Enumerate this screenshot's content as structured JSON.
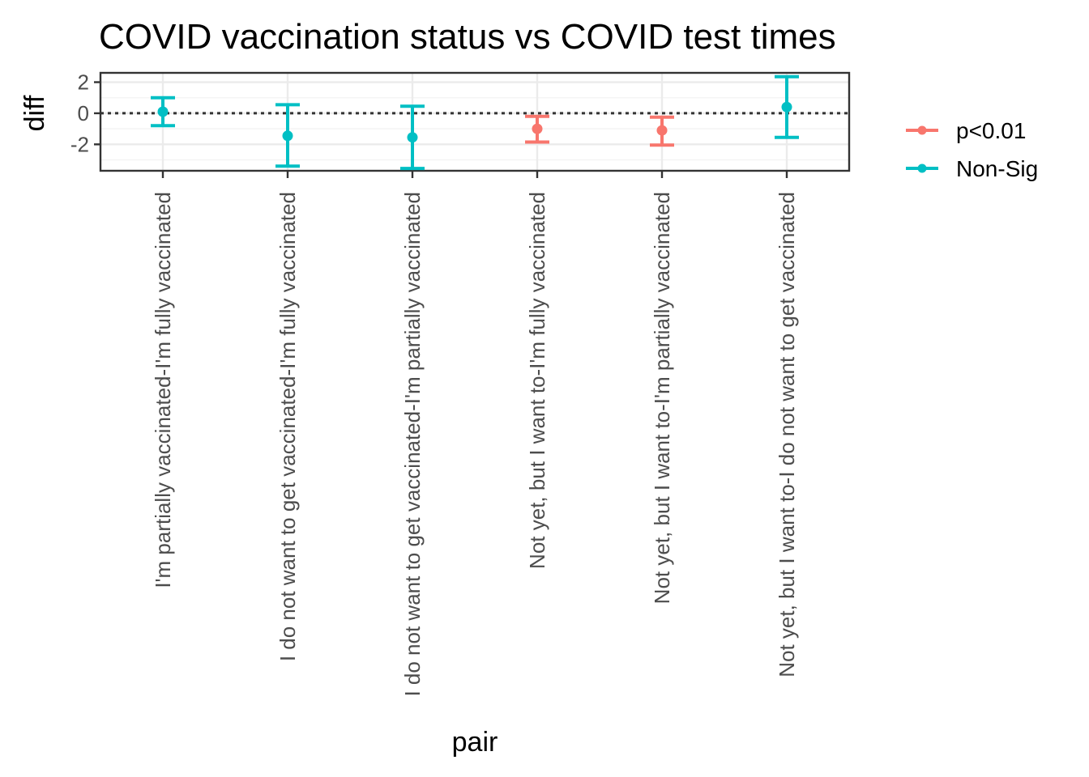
{
  "chart_data": {
    "type": "errorbar",
    "title": "COVID vaccination status vs COVID test times",
    "xlabel": "pair",
    "ylabel": "diff",
    "ylim": [
      -3.7,
      2.6
    ],
    "yticks": [
      2,
      0,
      -2
    ],
    "ytick_labels": [
      "2",
      "0",
      "-2"
    ],
    "reference_line": 0,
    "grid": true,
    "legend_position": "right",
    "legend": [
      {
        "key": "sig",
        "name": "p<0.01",
        "color": "#F8766D"
      },
      {
        "key": "nonsig",
        "name": "Non-Sig",
        "color": "#00BFC4"
      }
    ],
    "categories": [
      "I'm partially vaccinated-I'm fully vaccinated",
      "I do not want to get vaccinated-I'm fully vaccinated",
      "I do not want to get vaccinated-I'm partially vaccinated",
      "Not yet,  but I want to-I'm fully vaccinated",
      "Not yet,  but I want to-I'm partially vaccinated",
      "Not yet,  but I want to-I do not want to get vaccinated"
    ],
    "points": [
      {
        "diff": 0.1,
        "lwr": -0.8,
        "upr": 1.0,
        "group": "nonsig"
      },
      {
        "diff": -1.45,
        "lwr": -3.4,
        "upr": 0.55,
        "group": "nonsig"
      },
      {
        "diff": -1.55,
        "lwr": -3.55,
        "upr": 0.45,
        "group": "nonsig"
      },
      {
        "diff": -1.0,
        "lwr": -1.85,
        "upr": -0.2,
        "group": "sig"
      },
      {
        "diff": -1.1,
        "lwr": -2.05,
        "upr": -0.25,
        "group": "sig"
      },
      {
        "diff": 0.4,
        "lwr": -1.55,
        "upr": 2.35,
        "group": "nonsig"
      }
    ]
  }
}
